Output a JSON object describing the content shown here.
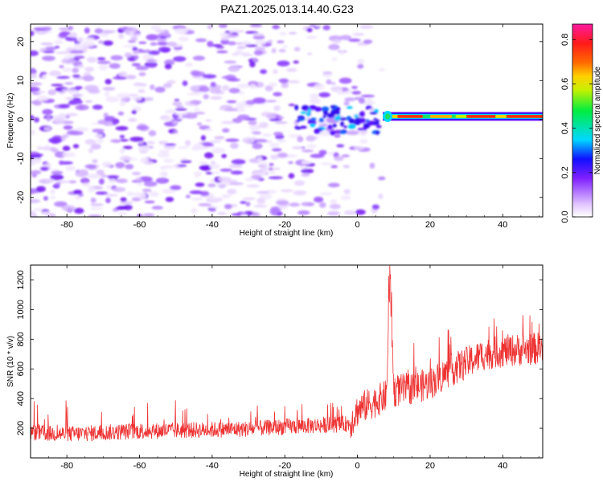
{
  "title": "PAZ1.2025.013.14.40.G23",
  "chart_data": [
    {
      "type": "heatmap",
      "xlabel": "Height of straight line (km)",
      "ylabel": "Frequency (Hz)",
      "xlim": [
        -90,
        51
      ],
      "ylim": [
        -25,
        24.5
      ],
      "xticks": [
        -80,
        -60,
        -40,
        -20,
        0,
        20,
        40
      ],
      "yticks": [
        -20,
        -10,
        0,
        10,
        20
      ],
      "colorbar": {
        "label": "Normalized spectral amplitude",
        "range": [
          0,
          0.87
        ],
        "ticks": [
          0.0,
          0.2,
          0.4,
          0.6,
          0.8
        ],
        "colormap": "rainbow (white-purple-blue-cyan-green-yellow-red-magenta)"
      },
      "features": {
        "noise_region_x": [
          -90,
          7
        ],
        "noise_amplitude": [
          0.0,
          0.15
        ],
        "signal_band_frequency_hz": 0.8,
        "signal_band_x": [
          7,
          51
        ],
        "signal_band_amplitude": [
          0.45,
          0.87
        ],
        "transition_x": [
          -17,
          7
        ]
      },
      "grid": false
    },
    {
      "type": "line",
      "xlabel": "Height of straight line (km)",
      "ylabel": "SNR (10 * v/v)",
      "xlim": [
        -90,
        51
      ],
      "ylim": [
        0,
        1300
      ],
      "xticks": [
        -80,
        -60,
        -40,
        -20,
        0,
        20,
        40
      ],
      "yticks": [
        200,
        400,
        600,
        800,
        1000,
        1200
      ],
      "line_color": "#ee3333",
      "series": [
        {
          "x": [
            -90,
            -80,
            -70,
            -60,
            -50,
            -40,
            -30,
            -20,
            -10,
            -2,
            0,
            2,
            5,
            8,
            9,
            10,
            15,
            20,
            25,
            30,
            35,
            40,
            45,
            51
          ],
          "values": [
            170,
            160,
            170,
            180,
            185,
            190,
            195,
            210,
            220,
            230,
            320,
            350,
            380,
            420,
            1250,
            450,
            470,
            500,
            580,
            640,
            700,
            720,
            730,
            740
          ]
        }
      ],
      "grid": false
    }
  ]
}
